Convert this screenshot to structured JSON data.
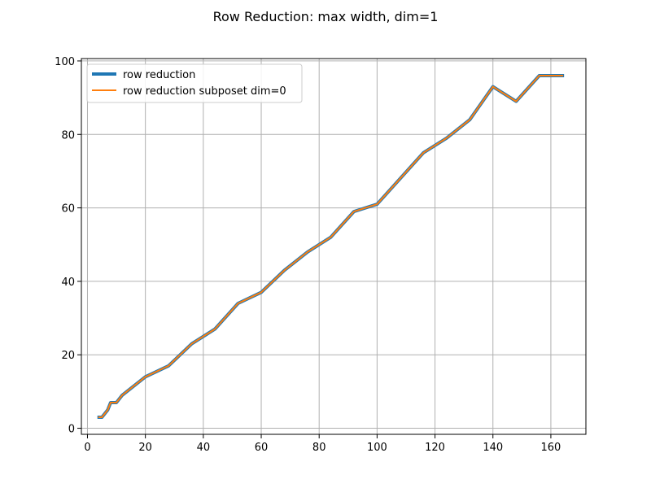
{
  "chart_data": {
    "type": "line",
    "title": "Row Reduction: max width, dim=1",
    "xlabel": "",
    "ylabel": "",
    "xlim": [
      -2.1,
      172.1
    ],
    "ylim": [
      -1.65,
      100.65
    ],
    "xticks": [
      0,
      20,
      40,
      60,
      80,
      100,
      120,
      140,
      160
    ],
    "yticks": [
      0,
      20,
      40,
      60,
      80,
      100
    ],
    "grid": true,
    "legend_position": "upper left",
    "series": [
      {
        "name": "row reduction",
        "color": "#1f77b4",
        "x": [
          4,
          5,
          6,
          7,
          8,
          9,
          10,
          12,
          20,
          28,
          36,
          44,
          52,
          60,
          68,
          76,
          84,
          92,
          100,
          108,
          116,
          124,
          132,
          140,
          148,
          156,
          164
        ],
        "y": [
          3,
          3,
          4,
          5,
          7,
          7,
          7,
          9,
          14,
          17,
          23,
          27,
          34,
          37,
          43,
          48,
          52,
          59,
          61,
          68,
          75,
          79,
          84,
          93,
          89,
          96,
          96
        ]
      },
      {
        "name": "row reduction subposet dim=0",
        "color": "#ff7f0e",
        "x": [
          4,
          5,
          6,
          7,
          8,
          9,
          10,
          12,
          20,
          28,
          36,
          44,
          52,
          60,
          68,
          76,
          84,
          92,
          100,
          108,
          116,
          124,
          132,
          140,
          148,
          156,
          164
        ],
        "y": [
          3,
          3,
          4,
          5,
          7,
          7,
          7,
          9,
          14,
          17,
          23,
          27,
          34,
          37,
          43,
          48,
          52,
          59,
          61,
          68,
          75,
          79,
          84,
          93,
          89,
          96,
          96
        ]
      }
    ]
  }
}
